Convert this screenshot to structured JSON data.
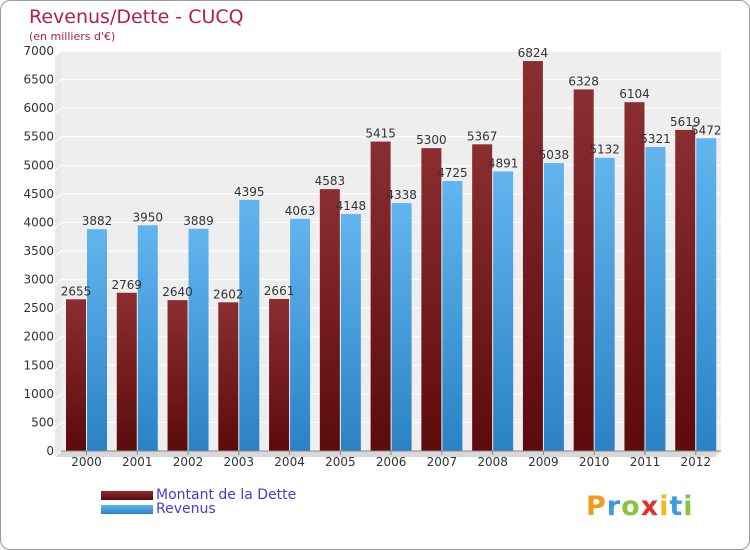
{
  "header": {
    "title": "Revenus/Dette - CUCQ",
    "subtitle": "(en milliers d'€)"
  },
  "colors": {
    "dette_light": "#8b2e31",
    "dette_dark": "#5c0a0c",
    "revenus_light": "#62b5ee",
    "revenus_dark": "#2a82c5",
    "title": "#b21e54",
    "legend_text": "#4040c8"
  },
  "chart_data": {
    "type": "bar",
    "title": "Revenus/Dette - CUCQ",
    "ylabel": "(en milliers d'€)",
    "xlabel": "",
    "ylim": [
      0,
      7000
    ],
    "yticks": [
      0,
      500,
      1000,
      1500,
      2000,
      2500,
      3000,
      3500,
      4000,
      4500,
      5000,
      5500,
      6000,
      6500,
      7000
    ],
    "grid": true,
    "legend_position": "bottom-left",
    "categories": [
      "2000",
      "2001",
      "2002",
      "2003",
      "2004",
      "2005",
      "2006",
      "2007",
      "2008",
      "2009",
      "2010",
      "2011",
      "2012"
    ],
    "series": [
      {
        "name": "Montant de la Dette",
        "values": [
          2655,
          2769,
          2640,
          2602,
          2661,
          4583,
          5415,
          5300,
          5367,
          6824,
          6328,
          6104,
          5619
        ]
      },
      {
        "name": "Revenus",
        "values": [
          3882,
          3950,
          3889,
          4395,
          4063,
          4148,
          4338,
          4725,
          4891,
          5038,
          5132,
          5321,
          5472
        ]
      }
    ]
  },
  "legend": {
    "items": [
      {
        "label": "Montant de la Dette"
      },
      {
        "label": "Revenus"
      }
    ]
  },
  "logo": {
    "letters": [
      "P",
      "r",
      "o",
      "x",
      "i",
      "t",
      "i"
    ],
    "letter_colors": [
      "#f29a1c",
      "#3a9be0",
      "#8ac43f",
      "#e2312b",
      "#f2b81c",
      "#3a9be0",
      "#8ac43f"
    ]
  }
}
